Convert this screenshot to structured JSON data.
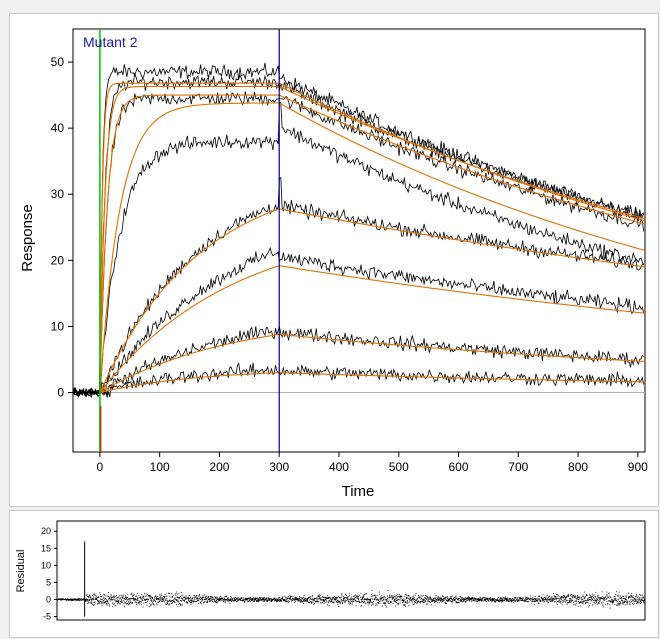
{
  "chart_data": [
    {
      "type": "line",
      "title": "Mutant 2",
      "xlabel": "Time",
      "ylabel": "Response",
      "xlim": [
        -45,
        912
      ],
      "ylim": [
        -9,
        55
      ],
      "x_ticks": [
        0,
        100,
        200,
        300,
        400,
        500,
        600,
        700,
        800,
        900
      ],
      "y_ticks": [
        0,
        10,
        20,
        30,
        40,
        50
      ],
      "injection_start": 0,
      "injection_end": 300,
      "baseline": 0,
      "colors": {
        "data": "#000000",
        "fit": "#e07000",
        "end_marker": "#00008b",
        "start_marker": "#00c000",
        "title": "#1a1aa0",
        "baseline": "#b0b0b0"
      },
      "grid": false,
      "series_fit": [
        {
          "plateau_at_300": 46.8,
          "dissociation_end_at_910": 26.0
        },
        {
          "plateau_at_300": 46.3,
          "dissociation_end_at_910": 26.3
        },
        {
          "plateau_at_300": 45.0,
          "dissociation_end_at_910": 25.5
        },
        {
          "plateau_at_300": 43.8,
          "dissociation_end_at_910": 21.5
        },
        {
          "plateau_at_300": 27.8,
          "dissociation_end_at_910": 19.0
        },
        {
          "plateau_at_300": 19.2,
          "dissociation_end_at_910": 12.0
        },
        {
          "plateau_at_300": 8.8,
          "dissociation_end_at_910": 4.7
        },
        {
          "plateau_at_300": 3.0,
          "dissociation_end_at_910": 1.6
        }
      ],
      "series_data_peaks": [
        48.5,
        47.0,
        44.5,
        38.0,
        28.5,
        21.5,
        9.5,
        3.5
      ]
    },
    {
      "type": "scatter",
      "title": "",
      "xlabel": "",
      "ylabel": "Residual",
      "xlim": [
        -45,
        912
      ],
      "ylim": [
        -6,
        23
      ],
      "y_ticks": [
        -5,
        0,
        5,
        10,
        15,
        20
      ],
      "spike_at_injection": 17,
      "noise_amplitude": 3
    }
  ]
}
